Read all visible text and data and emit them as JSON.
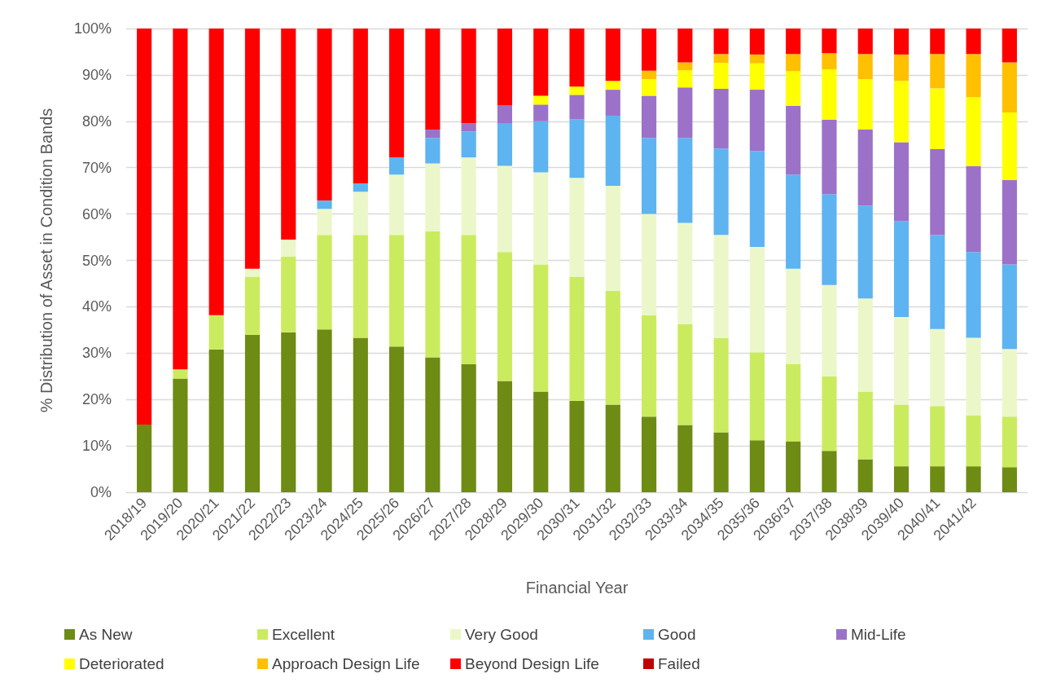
{
  "chart_data": {
    "type": "bar",
    "stacked": true,
    "xlabel": "Financial Year",
    "ylabel": "% Distribution of Asset in Condition Bands",
    "categories": [
      "2018/19",
      "2019/20",
      "2020/21",
      "2021/22",
      "2022/23",
      "2023/24",
      "2024/25",
      "2025/26",
      "2026/27",
      "2027/28",
      "2028/29",
      "2029/30",
      "2030/31",
      "2031/32",
      "2032/33",
      "2033/34",
      "2034/35",
      "2035/36",
      "2036/37",
      "2037/38",
      "2038/39",
      "2039/40",
      "2040/41",
      "2041/42",
      null
    ],
    "ylim": [
      0,
      100
    ],
    "yticks": [
      {
        "value": 0,
        "label": "0%"
      },
      {
        "value": 10,
        "label": "10%"
      },
      {
        "value": 20,
        "label": "20%"
      },
      {
        "value": 30,
        "label": "30%"
      },
      {
        "value": 40,
        "label": "40%"
      },
      {
        "value": 50,
        "label": "50%"
      },
      {
        "value": 60,
        "label": "60%"
      },
      {
        "value": 70,
        "label": "70%"
      },
      {
        "value": 80,
        "label": "80%"
      },
      {
        "value": 90,
        "label": "90%"
      },
      {
        "value": 100,
        "label": "100%"
      }
    ],
    "grid": "y",
    "legend": "bottom",
    "series": [
      {
        "name": "As New",
        "color": "#6e8b13",
        "values": [
          14.6,
          24.5,
          30.8,
          33.9,
          34.5,
          35.1,
          33.3,
          31.4,
          29.1,
          27.6,
          24.0,
          21.7,
          19.7,
          18.9,
          16.3,
          14.5,
          12.9,
          11.2,
          11.0,
          8.9,
          7.1,
          5.6,
          5.6,
          5.6,
          5.4
        ]
      },
      {
        "name": "Excellent",
        "color": "#cbeb5f",
        "values": [
          0,
          2.0,
          7.4,
          12.6,
          16.3,
          20.4,
          22.2,
          24.1,
          27.2,
          27.9,
          27.8,
          27.4,
          26.8,
          24.5,
          21.9,
          21.8,
          20.4,
          19.0,
          16.7,
          16.1,
          14.6,
          13.3,
          13.0,
          11.0,
          10.9
        ]
      },
      {
        "name": "Very Good",
        "color": "#ecf7c9",
        "values": [
          0,
          0,
          0,
          1.7,
          3.7,
          5.6,
          9.3,
          13.0,
          14.6,
          16.7,
          18.6,
          19.9,
          21.3,
          22.7,
          21.8,
          21.8,
          22.2,
          22.7,
          20.5,
          19.7,
          20.1,
          18.9,
          16.6,
          16.7,
          14.6
        ]
      },
      {
        "name": "Good",
        "color": "#5db4f0",
        "values": [
          0,
          0,
          0,
          0,
          0,
          1.8,
          1.8,
          3.7,
          5.5,
          5.6,
          9.2,
          11.0,
          12.6,
          15.1,
          16.4,
          18.3,
          18.6,
          20.7,
          20.3,
          19.6,
          20.0,
          20.7,
          20.3,
          18.5,
          18.2
        ]
      },
      {
        "name": "Mid-Life",
        "color": "#9b72c8",
        "values": [
          0,
          0,
          0,
          0,
          0,
          0,
          0,
          0,
          1.8,
          1.8,
          3.8,
          3.6,
          5.3,
          5.6,
          9.1,
          10.9,
          12.9,
          13.2,
          14.8,
          16.0,
          16.4,
          17.0,
          18.5,
          18.5,
          18.2
        ]
      },
      {
        "name": "Deteriorated",
        "color": "#ffff00",
        "values": [
          0,
          0,
          0,
          0,
          0,
          0,
          0,
          0,
          0,
          0,
          0,
          1.9,
          1.8,
          1.9,
          3.6,
          3.7,
          5.6,
          5.7,
          7.5,
          10.9,
          10.9,
          13.2,
          13.1,
          14.9,
          14.6
        ]
      },
      {
        "name": "Approach Design Life",
        "color": "#ffc000",
        "values": [
          0,
          0,
          0,
          0,
          0,
          0,
          0,
          0,
          0,
          0,
          0,
          0,
          0,
          0,
          1.8,
          1.7,
          1.9,
          1.9,
          3.7,
          3.5,
          5.4,
          5.7,
          7.4,
          9.3,
          10.8
        ]
      },
      {
        "name": "Beyond Design Life",
        "color": "#ff0000",
        "values": [
          85.4,
          73.5,
          61.8,
          51.8,
          45.5,
          37.1,
          33.4,
          27.8,
          21.8,
          20.4,
          16.6,
          14.5,
          12.5,
          11.3,
          9.1,
          7.3,
          5.5,
          5.6,
          5.5,
          5.3,
          5.5,
          5.6,
          5.5,
          5.5,
          7.3
        ]
      },
      {
        "name": "Failed",
        "color": "#c00000",
        "values": [
          0,
          0,
          0,
          0,
          0,
          0,
          0,
          0,
          0,
          0,
          0,
          0,
          0,
          0,
          0,
          0,
          0,
          0,
          0,
          0,
          0,
          0,
          0,
          0,
          0
        ]
      }
    ]
  }
}
